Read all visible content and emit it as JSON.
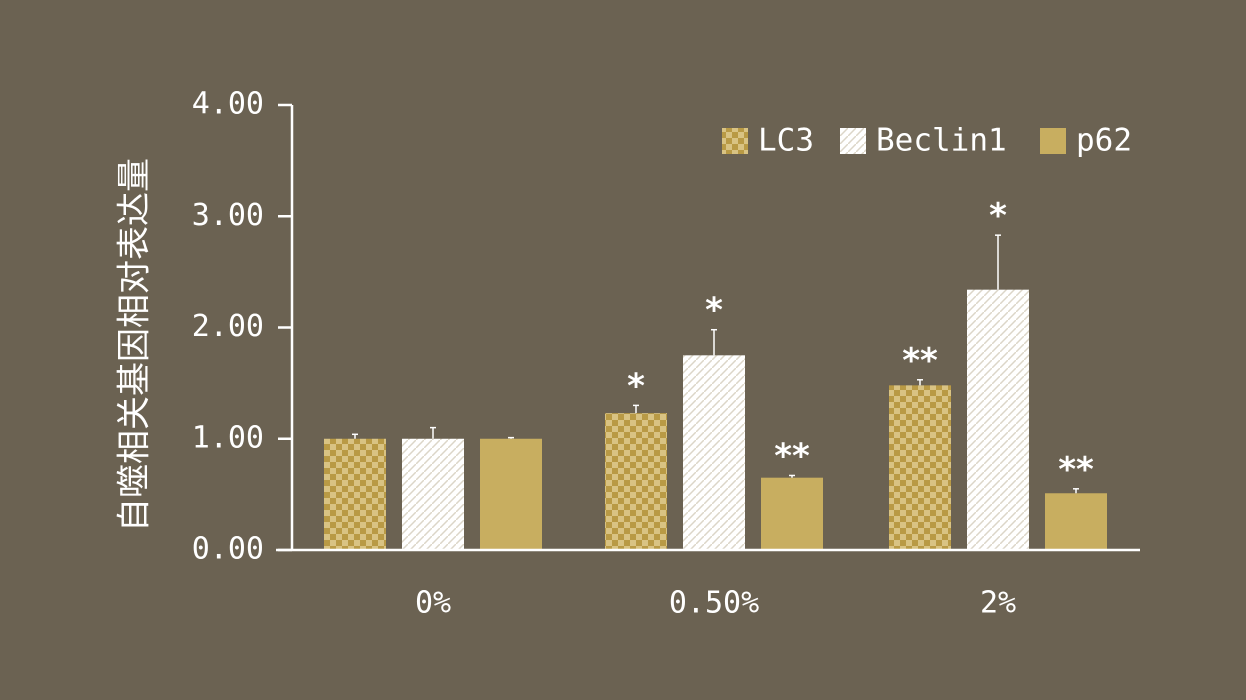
{
  "chart_data": {
    "type": "bar",
    "title": "",
    "xlabel": "",
    "ylabel": "自噬相关基因相对表达量",
    "ylim": [
      0,
      4
    ],
    "yticks": [
      "0.00",
      "1.00",
      "2.00",
      "3.00",
      "4.00"
    ],
    "categories": [
      "0%",
      "0.50%",
      "2%"
    ],
    "legend": "top-right",
    "grid": false,
    "series": [
      {
        "name": "LC3",
        "color": "#c8ae60",
        "pattern": "checker",
        "values": [
          1.0,
          1.23,
          1.48
        ],
        "errors": [
          0.04,
          0.07,
          0.05
        ],
        "significance": [
          "",
          "*",
          "**"
        ]
      },
      {
        "name": "Beclin1",
        "color": "#ffffff",
        "pattern": "diagonal",
        "values": [
          1.0,
          1.75,
          2.34
        ],
        "errors": [
          0.1,
          0.23,
          0.49
        ],
        "significance": [
          "",
          "*",
          "*"
        ]
      },
      {
        "name": "p62",
        "color": "#c8ae60",
        "pattern": "solid",
        "values": [
          1.0,
          0.65,
          0.51
        ],
        "errors": [
          0.01,
          0.02,
          0.04
        ],
        "significance": [
          "",
          "**",
          "**"
        ]
      }
    ]
  }
}
